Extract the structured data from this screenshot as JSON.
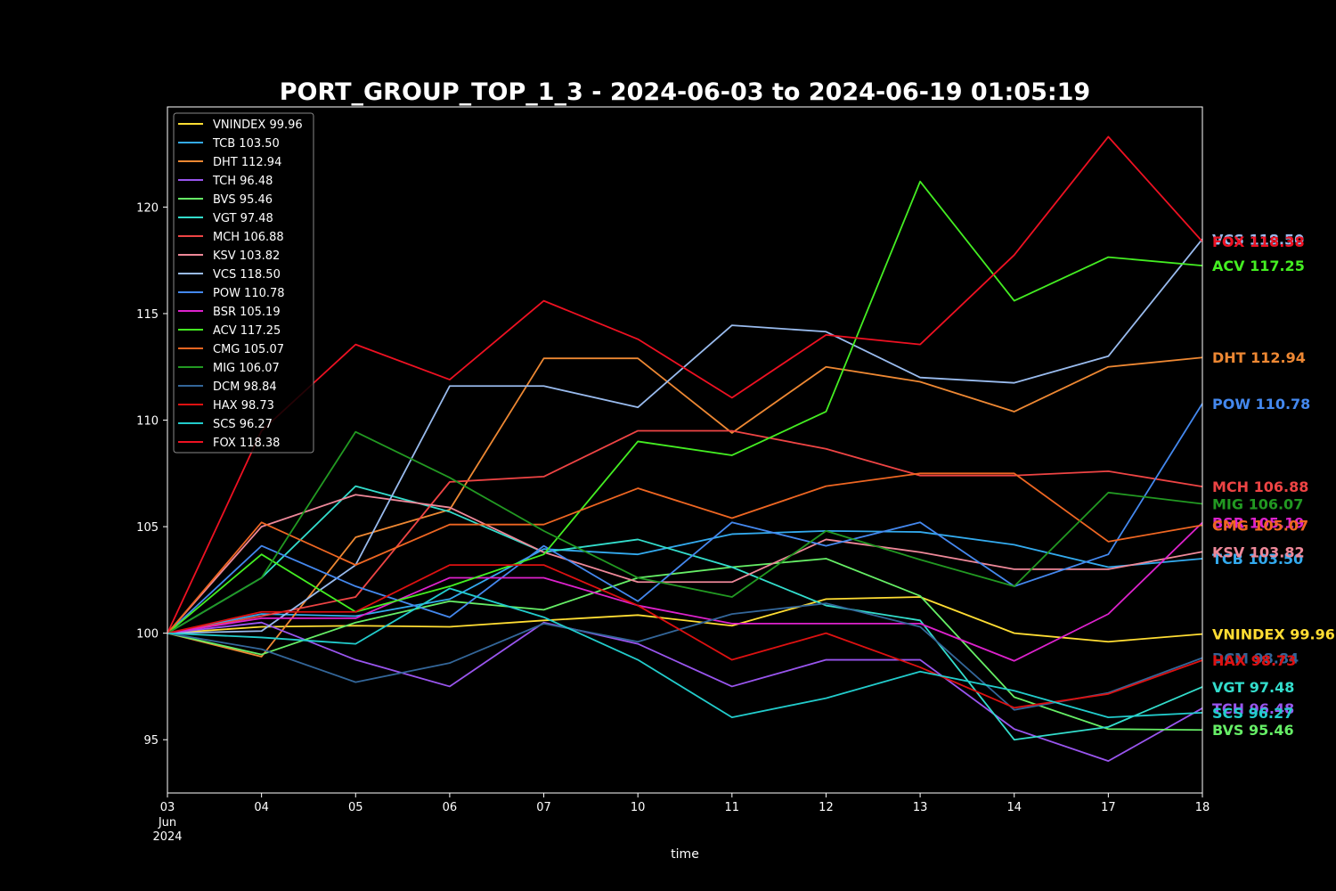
{
  "chart_data": {
    "type": "line",
    "title": "PORT_GROUP_TOP_1_3 - 2024-06-03 to 2024-06-19 01:05:19",
    "xlabel": "time",
    "ylabel": "",
    "x_tick_labels": [
      "03",
      "04",
      "05",
      "06",
      "07",
      "10",
      "11",
      "12",
      "13",
      "14",
      "17",
      "18"
    ],
    "x_tick_sublabels": [
      "Jun",
      "2024"
    ],
    "ylim": [
      92.5,
      124.7
    ],
    "y_ticks": [
      95,
      100,
      105,
      110,
      115,
      120
    ],
    "legend_position": "top-left",
    "grid": false,
    "series": [
      {
        "name": "VNINDEX 99.96",
        "color": "#ffdd33",
        "values": [
          100,
          100.3,
          100.35,
          100.3,
          100.6,
          100.85,
          100.35,
          101.6,
          101.7,
          100,
          99.6,
          99.96
        ]
      },
      {
        "name": "TCB 103.50",
        "color": "#33aaee",
        "values": [
          100,
          100.9,
          100.8,
          101.6,
          103.95,
          103.7,
          104.65,
          104.8,
          104.75,
          104.15,
          103.1,
          103.5
        ]
      },
      {
        "name": "DHT 112.94",
        "color": "#ee8833",
        "values": [
          100,
          98.9,
          104.5,
          105.8,
          112.9,
          112.9,
          109.4,
          112.5,
          111.8,
          110.4,
          112.5,
          112.94
        ]
      },
      {
        "name": "TCH 96.48",
        "color": "#9955ee",
        "values": [
          100,
          100.5,
          98.75,
          97.5,
          100.5,
          99.5,
          97.5,
          98.75,
          98.75,
          95.5,
          94,
          96.48
        ]
      },
      {
        "name": "BVS 95.46",
        "color": "#66ee66",
        "values": [
          100,
          99,
          100.5,
          101.5,
          101.1,
          102.6,
          103.1,
          103.5,
          101.75,
          97,
          95.5,
          95.46
        ]
      },
      {
        "name": "VGT 97.48",
        "color": "#33ddcc",
        "values": [
          100,
          102.6,
          106.9,
          105.7,
          103.8,
          104.4,
          103.1,
          101.3,
          100.6,
          95,
          95.6,
          97.48
        ]
      },
      {
        "name": "MCH 106.88",
        "color": "#ee4444",
        "values": [
          100,
          100.8,
          101.7,
          107.1,
          107.35,
          109.5,
          109.5,
          108.65,
          107.4,
          107.4,
          107.6,
          106.88
        ]
      },
      {
        "name": "KSV 103.82",
        "color": "#ee8899",
        "values": [
          100,
          105,
          106.5,
          105.9,
          103.8,
          102.4,
          102.4,
          104.4,
          103.8,
          103,
          103,
          103.82
        ]
      },
      {
        "name": "VCS 118.50",
        "color": "#99bbee",
        "values": [
          100,
          100.1,
          103.2,
          111.6,
          111.6,
          110.6,
          114.45,
          114.15,
          112,
          111.75,
          113,
          118.5
        ]
      },
      {
        "name": "POW 110.78",
        "color": "#4488ee",
        "values": [
          100,
          104.1,
          102.2,
          100.75,
          104.1,
          101.5,
          105.2,
          104.1,
          105.2,
          102.2,
          103.7,
          110.78
        ]
      },
      {
        "name": "BSR 105.19",
        "color": "#dd22cc",
        "values": [
          100,
          100.7,
          100.7,
          102.6,
          102.6,
          101.3,
          100.45,
          100.45,
          100.45,
          98.7,
          100.9,
          105.19
        ]
      },
      {
        "name": "ACV 117.25",
        "color": "#44ee22",
        "values": [
          100,
          103.7,
          101,
          102.2,
          103.7,
          109,
          108.35,
          110.4,
          121.2,
          115.6,
          117.65,
          117.25
        ]
      },
      {
        "name": "CMG 105.07",
        "color": "#ee6622",
        "values": [
          100,
          105.2,
          103.2,
          105.1,
          105.1,
          106.8,
          105.4,
          106.9,
          107.5,
          107.5,
          104.3,
          105.07
        ]
      },
      {
        "name": "MIG 106.07",
        "color": "#229922",
        "values": [
          100,
          102.6,
          109.45,
          107.3,
          104.8,
          102.6,
          101.7,
          104.8,
          103.45,
          102.2,
          106.6,
          106.07
        ]
      },
      {
        "name": "DCM 98.84",
        "color": "#336699",
        "values": [
          100,
          99.25,
          97.7,
          98.6,
          100.45,
          99.6,
          100.9,
          101.4,
          100.3,
          96.4,
          97.2,
          98.84
        ]
      },
      {
        "name": "HAX 98.73",
        "color": "#dd1111",
        "values": [
          100,
          101,
          101,
          103.2,
          103.2,
          101.3,
          98.75,
          100,
          98.4,
          96.5,
          97.15,
          98.73
        ]
      },
      {
        "name": "SCS 96.27",
        "color": "#22cccc",
        "values": [
          100,
          99.8,
          99.5,
          102.1,
          100.75,
          98.75,
          96.05,
          96.95,
          98.2,
          97.3,
          96.05,
          96.27
        ]
      },
      {
        "name": "FOX 118.38",
        "color": "#ee1122",
        "values": [
          100,
          109.5,
          113.55,
          111.9,
          115.6,
          113.8,
          111.05,
          114,
          113.55,
          117.75,
          123.3,
          118.38
        ]
      }
    ]
  }
}
